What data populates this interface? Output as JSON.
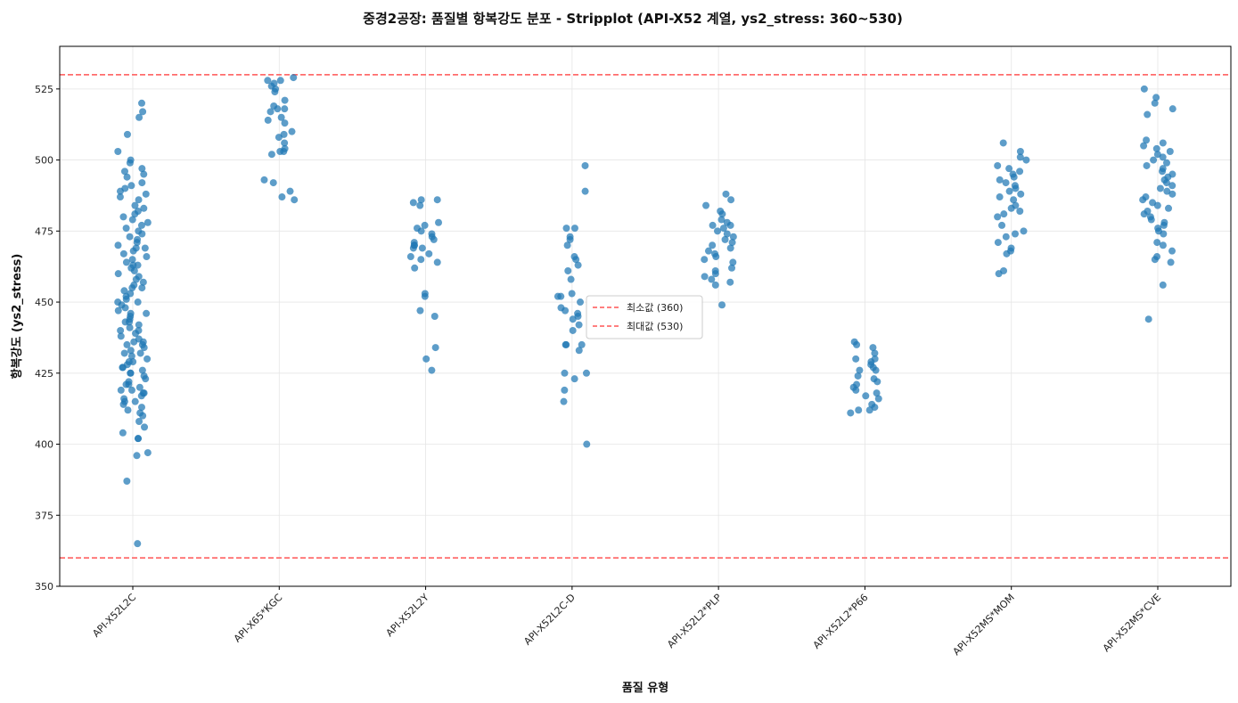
{
  "chart_data": {
    "type": "scatter",
    "subtype": "stripplot",
    "title": "중경2공장: 품질별 항복강도 분포 - Stripplot (API-X52 계열, ys2_stress: 360~530)",
    "xlabel": "품질 유형",
    "ylabel": "항복강도 (ys2_stress)",
    "ylim": [
      350,
      540
    ],
    "yticks": [
      350,
      375,
      400,
      425,
      450,
      475,
      500,
      525
    ],
    "grid": true,
    "legend_position": "center",
    "point_color": "#1f77b4",
    "categories": [
      "API-X52L2C",
      "API-X65*KGC",
      "API-X52L2Y",
      "API-X52L2C-D",
      "API-X52L2*PLP",
      "API-X52L2*P66",
      "API-X52MS*MOM",
      "API-X52MS*CVE"
    ],
    "series": [
      {
        "category": "API-X52L2C",
        "values": [
          365,
          387,
          396,
          397,
          402,
          402,
          404,
          406,
          408,
          410,
          411,
          412,
          413,
          414,
          415,
          415,
          416,
          417,
          418,
          418,
          419,
          419,
          420,
          421,
          421,
          422,
          423,
          424,
          425,
          425,
          426,
          427,
          427,
          428,
          429,
          429,
          430,
          431,
          432,
          432,
          433,
          434,
          435,
          435,
          436,
          436,
          437,
          438,
          439,
          440,
          440,
          441,
          442,
          443,
          443,
          444,
          445,
          446,
          446,
          447,
          448,
          449,
          450,
          450,
          451,
          452,
          453,
          454,
          455,
          455,
          456,
          457,
          458,
          459,
          460,
          461,
          462,
          463,
          463,
          464,
          465,
          466,
          467,
          468,
          469,
          469,
          470,
          471,
          472,
          473,
          474,
          475,
          476,
          477,
          478,
          479,
          480,
          481,
          482,
          483,
          484,
          486,
          487,
          488,
          489,
          490,
          491,
          492,
          494,
          495,
          496,
          497,
          499,
          500,
          503,
          509,
          515,
          517,
          520
        ]
      },
      {
        "category": "API-X65*KGC",
        "values": [
          486,
          487,
          489,
          492,
          493,
          502,
          503,
          503,
          504,
          506,
          508,
          509,
          510,
          513,
          514,
          515,
          517,
          518,
          518,
          519,
          521,
          524,
          525,
          526,
          527,
          528,
          528,
          529
        ]
      },
      {
        "category": "API-X52L2Y",
        "values": [
          426,
          430,
          434,
          445,
          447,
          452,
          453,
          462,
          464,
          465,
          466,
          467,
          469,
          469,
          470,
          470,
          471,
          472,
          473,
          474,
          475,
          476,
          477,
          478,
          484,
          485,
          486,
          486
        ]
      },
      {
        "category": "API-X52L2C-D",
        "values": [
          400,
          415,
          419,
          423,
          425,
          425,
          433,
          435,
          435,
          435,
          440,
          442,
          444,
          445,
          446,
          447,
          448,
          450,
          452,
          452,
          453,
          458,
          461,
          463,
          465,
          466,
          470,
          472,
          473,
          476,
          476,
          489,
          498
        ]
      },
      {
        "category": "API-X52L2*PLP",
        "values": [
          449,
          456,
          457,
          458,
          459,
          460,
          461,
          462,
          464,
          465,
          466,
          467,
          468,
          469,
          470,
          471,
          472,
          473,
          474,
          475,
          476,
          477,
          477,
          478,
          479,
          481,
          482,
          484,
          486,
          488
        ]
      },
      {
        "category": "API-X52L2*P66",
        "values": [
          411,
          412,
          412,
          413,
          414,
          416,
          417,
          418,
          419,
          420,
          421,
          422,
          423,
          424,
          426,
          426,
          427,
          428,
          429,
          430,
          430,
          432,
          434,
          435,
          436
        ]
      },
      {
        "category": "API-X52MS*MOM",
        "values": [
          460,
          461,
          467,
          468,
          469,
          471,
          473,
          474,
          475,
          477,
          480,
          481,
          482,
          483,
          484,
          486,
          487,
          488,
          489,
          490,
          491,
          492,
          493,
          494,
          495,
          496,
          497,
          498,
          500,
          501,
          503,
          506
        ]
      },
      {
        "category": "API-X52MS*CVE",
        "values": [
          444,
          456,
          464,
          465,
          466,
          468,
          470,
          471,
          474,
          475,
          476,
          477,
          478,
          479,
          480,
          481,
          482,
          483,
          484,
          485,
          486,
          487,
          488,
          489,
          490,
          491,
          492,
          493,
          494,
          495,
          496,
          497,
          498,
          499,
          500,
          501,
          502,
          503,
          504,
          505,
          506,
          507,
          516,
          518,
          520,
          522,
          525
        ]
      }
    ],
    "reference_lines": [
      {
        "label": "최소값 (360)",
        "value": 360,
        "color": "#ff5555",
        "style": "dashed"
      },
      {
        "label": "최대값 (530)",
        "value": 530,
        "color": "#ff5555",
        "style": "dashed"
      }
    ]
  }
}
